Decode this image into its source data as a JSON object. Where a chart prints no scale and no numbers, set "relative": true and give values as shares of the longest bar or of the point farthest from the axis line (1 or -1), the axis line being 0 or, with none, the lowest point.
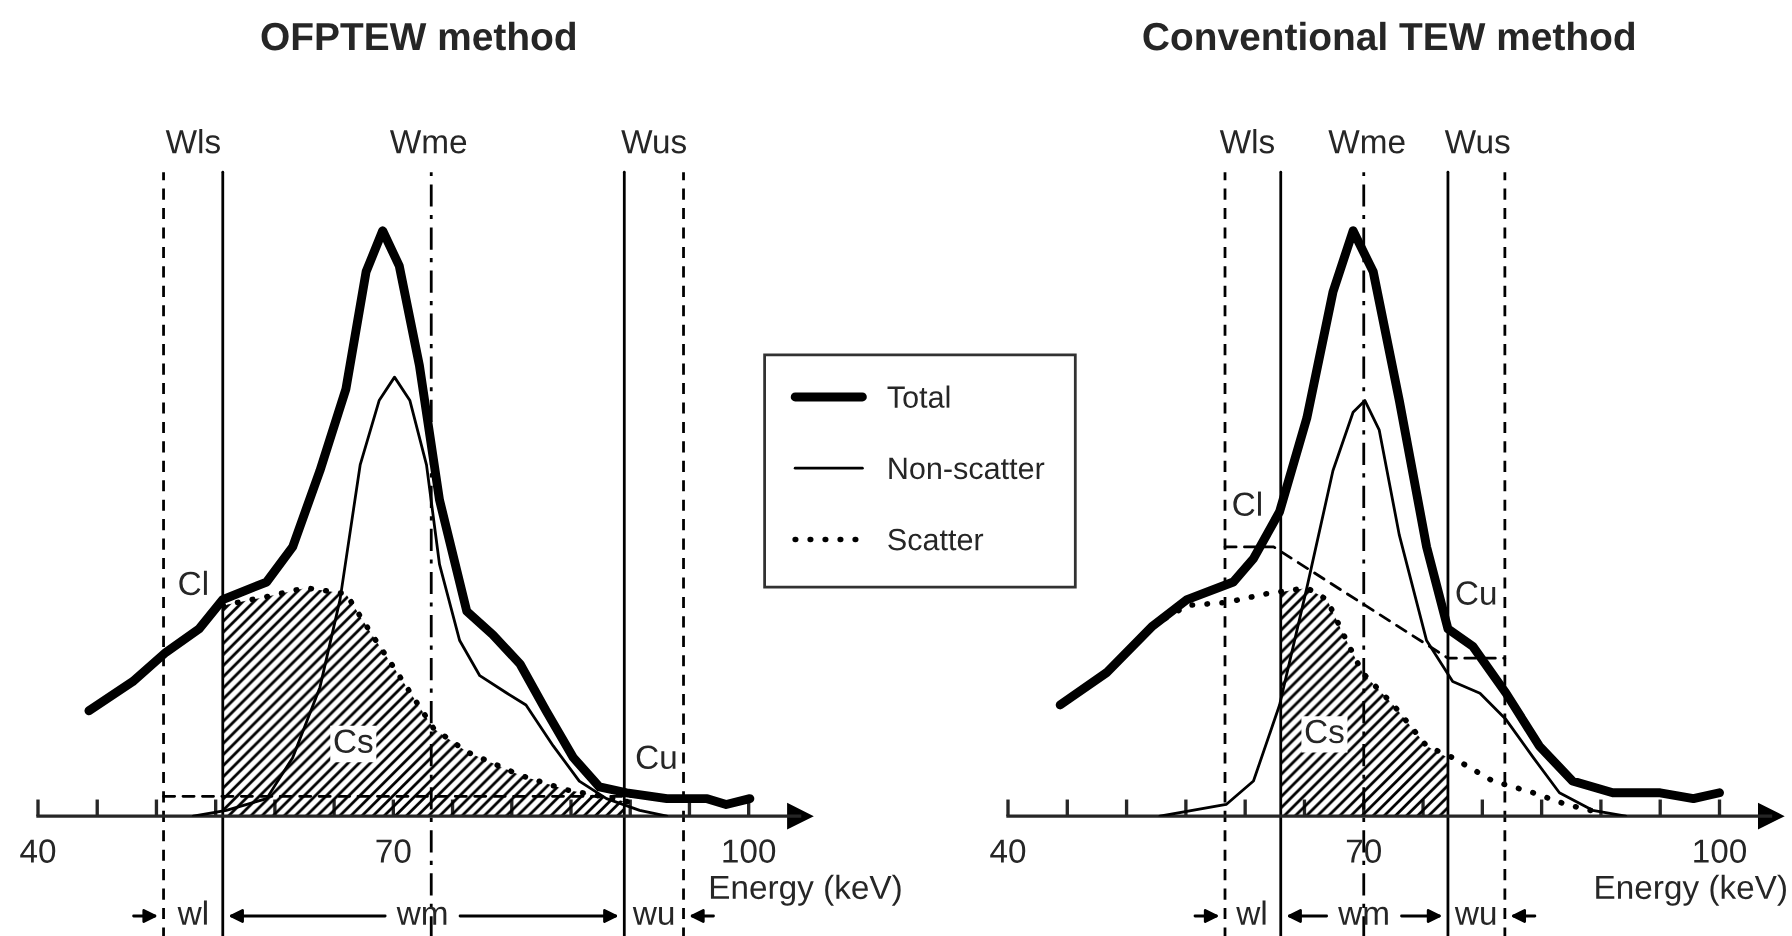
{
  "chart_data": [
    {
      "type": "line",
      "title": "OFPTEW method",
      "xlabel": "Energy (keV)",
      "relative": true,
      "legend": "right",
      "xlim": [
        40,
        104.3
      ],
      "xticks": [
        40,
        {
          "value": 45,
          "label": null
        },
        {
          "value": 50,
          "label": null
        },
        {
          "value": 55,
          "label": null
        },
        {
          "value": 60,
          "label": null
        },
        {
          "value": 65,
          "label": null
        },
        70,
        {
          "value": 75,
          "label": null
        },
        {
          "value": 80,
          "label": null
        },
        {
          "value": 85,
          "label": null
        },
        {
          "value": 90,
          "label": null
        },
        {
          "value": 95,
          "label": null
        },
        100
      ],
      "series": [
        {
          "name": "Total",
          "color": "#000000",
          "line_style": "solid",
          "x": [
            44.3,
            48.0,
            50.8,
            53.6,
            55.6,
            59.3,
            61.5,
            63.8,
            66.0,
            67.7,
            69.1,
            70.5,
            72.2,
            73.9,
            76.2,
            78.4,
            80.7,
            82.9,
            85.2,
            87.4,
            89.7,
            93.1,
            96.5,
            98.1,
            100.1
          ],
          "values": [
            0.18,
            0.23,
            0.28,
            0.32,
            0.37,
            0.4,
            0.46,
            0.59,
            0.73,
            0.93,
            1.0,
            0.94,
            0.77,
            0.54,
            0.35,
            0.31,
            0.26,
            0.18,
            0.1,
            0.05,
            0.04,
            0.03,
            0.03,
            0.02,
            0.03
          ]
        },
        {
          "name": "Non-scatter",
          "color": "#000000",
          "line_style": "solid",
          "x": [
            53.1,
            55.9,
            59.3,
            61.5,
            63.8,
            65.5,
            67.2,
            68.8,
            70.1,
            71.4,
            72.8,
            73.9,
            75.6,
            77.3,
            79.6,
            81.2,
            83.5,
            85.7,
            88.0,
            90.8,
            93.1
          ],
          "values": [
            0,
            0.01,
            0.03,
            0.1,
            0.22,
            0.37,
            0.6,
            0.71,
            0.75,
            0.71,
            0.6,
            0.43,
            0.3,
            0.24,
            0.21,
            0.19,
            0.12,
            0.06,
            0.03,
            0.01,
            0
          ]
        },
        {
          "name": "Scatter",
          "color": "#000000",
          "line_style": "dotted",
          "x": [
            55.6,
            59.3,
            62.6,
            66.0,
            68.2,
            70.5,
            73.4,
            76.2,
            80.7,
            84.6,
            88.6,
            90.8
          ],
          "values": [
            0.36,
            0.375,
            0.39,
            0.38,
            0.31,
            0.24,
            0.15,
            0.11,
            0.07,
            0.045,
            0.03,
            0.02
          ]
        },
        {
          "type": "area",
          "color": "#000000",
          "x": [
            55.6,
            59.3,
            62.6,
            66.0,
            68.2,
            70.5,
            73.4,
            76.2,
            80.7,
            84.6,
            88.6,
            89.5
          ],
          "values": [
            0.36,
            0.375,
            0.39,
            0.38,
            0.31,
            0.24,
            0.15,
            0.11,
            0.07,
            0.045,
            0.03,
            0.025
          ]
        },
        {
          "color": "#000000",
          "line_style": "dashed",
          "x": [
            50.6,
            94.5
          ],
          "values": [
            0.034,
            0.034
          ]
        }
      ],
      "ref_lines": [
        {
          "axis": "x",
          "value": 50.6,
          "line_style": "dashed"
        },
        {
          "axis": "x",
          "value": 55.6,
          "line_style": "solid"
        },
        {
          "axis": "x",
          "value": 73.2,
          "line_style": "dashdot"
        },
        {
          "axis": "x",
          "value": 89.5,
          "line_style": "solid"
        },
        {
          "axis": "x",
          "value": 94.5,
          "line_style": "dashed"
        }
      ],
      "annotations": [
        "Wls",
        "Wme",
        "Wus",
        "Cl",
        "Cs",
        "Cu",
        "wl",
        "wm",
        "wu"
      ]
    },
    {
      "type": "line",
      "title": "Conventional TEW method",
      "xlabel": "Energy (keV)",
      "relative": true,
      "xlim": [
        40,
        104.3
      ],
      "xticks": [
        40,
        {
          "value": 45,
          "label": null
        },
        {
          "value": 50,
          "label": null
        },
        {
          "value": 55,
          "label": null
        },
        {
          "value": 60,
          "label": null
        },
        {
          "value": 65,
          "label": null
        },
        70,
        {
          "value": 75,
          "label": null
        },
        {
          "value": 80,
          "label": null
        },
        {
          "value": 85,
          "label": null
        },
        {
          "value": 90,
          "label": null
        },
        {
          "value": 95,
          "label": null
        },
        100
      ],
      "series": [
        {
          "color": "#000000",
          "line_style": "solid",
          "x": [
            44.4,
            48.3,
            52.2,
            55.1,
            59.0,
            60.7,
            62.9,
            65.2,
            67.4,
            69.1,
            70.8,
            73.0,
            75.3,
            77.1,
            79.2,
            82.0,
            84.8,
            87.6,
            91.0,
            95.0,
            97.8,
            100.0
          ],
          "values": [
            0.19,
            0.245,
            0.325,
            0.37,
            0.4,
            0.44,
            0.52,
            0.68,
            0.895,
            1.0,
            0.93,
            0.71,
            0.46,
            0.32,
            0.29,
            0.21,
            0.12,
            0.06,
            0.04,
            0.04,
            0.03,
            0.04
          ]
        },
        {
          "color": "#000000",
          "line_style": "solid",
          "x": [
            52.8,
            58.4,
            60.7,
            62.9,
            65.2,
            67.4,
            69.1,
            70.1,
            71.3,
            73.0,
            75.3,
            77.5,
            79.8,
            82.0,
            84.3,
            86.5,
            89.3,
            92.1
          ],
          "values": [
            0,
            0.02,
            0.06,
            0.19,
            0.39,
            0.59,
            0.69,
            0.71,
            0.66,
            0.48,
            0.3,
            0.23,
            0.21,
            0.165,
            0.1,
            0.04,
            0.01,
            0
          ]
        },
        {
          "color": "#000000",
          "line_style": "dotted",
          "x": [
            52.2,
            55.1,
            58.4,
            61.8,
            65.2,
            66.9,
            68.3,
            69.9,
            72.5,
            75.3,
            77.5,
            80.9,
            84.3,
            87.1,
            89.9
          ],
          "values": [
            0.325,
            0.36,
            0.365,
            0.38,
            0.39,
            0.37,
            0.31,
            0.245,
            0.19,
            0.12,
            0.1,
            0.06,
            0.04,
            0.02,
            0.006
          ]
        },
        {
          "type": "area",
          "color": "#000000",
          "x": [
            63.0,
            65.2,
            66.9,
            68.3,
            69.9,
            72.5,
            75.3,
            77.1
          ],
          "values": [
            0.383,
            0.39,
            0.37,
            0.31,
            0.245,
            0.19,
            0.12,
            0.1
          ]
        },
        {
          "color": "#000000",
          "line_style": "dashed",
          "x": [
            58.3,
            62.4,
            77.1,
            81.9
          ],
          "values": [
            0.46,
            0.46,
            0.27,
            0.27
          ]
        }
      ],
      "ref_lines": [
        {
          "axis": "x",
          "value": 58.3,
          "line_style": "dashed"
        },
        {
          "axis": "x",
          "value": 63.0,
          "line_style": "solid"
        },
        {
          "axis": "x",
          "value": 70.0,
          "line_style": "dashdot"
        },
        {
          "axis": "x",
          "value": 77.1,
          "line_style": "solid"
        },
        {
          "axis": "x",
          "value": 81.9,
          "line_style": "dashed"
        }
      ],
      "annotations": [
        "Wls",
        "Wme",
        "Wus",
        "Cl",
        "Cs",
        "Cu",
        "wl",
        "wm",
        "wu"
      ]
    }
  ]
}
